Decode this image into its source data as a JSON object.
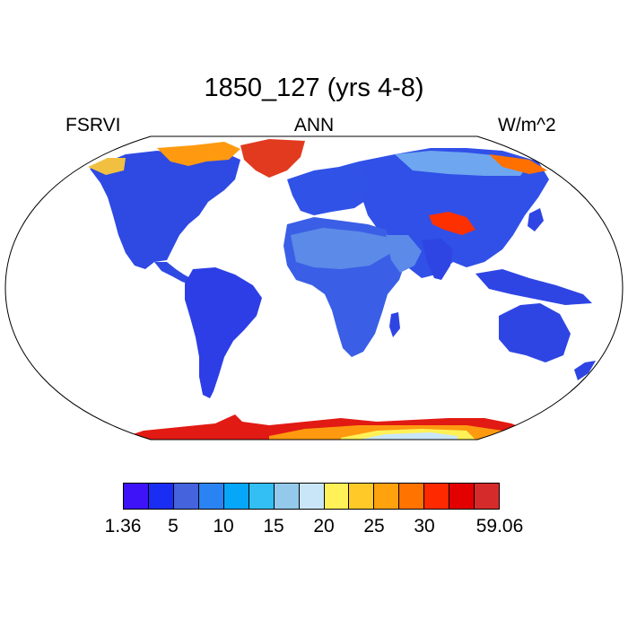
{
  "title": "1850_127 (yrs 4-8)",
  "left_label": "FSRVI",
  "center_label": "ANN",
  "right_label": "W/m^2",
  "colorbar": {
    "colors": [
      "#3e13f7",
      "#1a2df2",
      "#4463dd",
      "#2a83f2",
      "#06a6f9",
      "#33bff4",
      "#94c9eb",
      "#c9e6f8",
      "#fff157",
      "#ffc927",
      "#ffa20d",
      "#ff7300",
      "#ff2900",
      "#e20000",
      "#d62b2b"
    ],
    "tick_labels": [
      "1.36",
      "5",
      "10",
      "15",
      "20",
      "25",
      "30",
      "59.06"
    ]
  }
}
